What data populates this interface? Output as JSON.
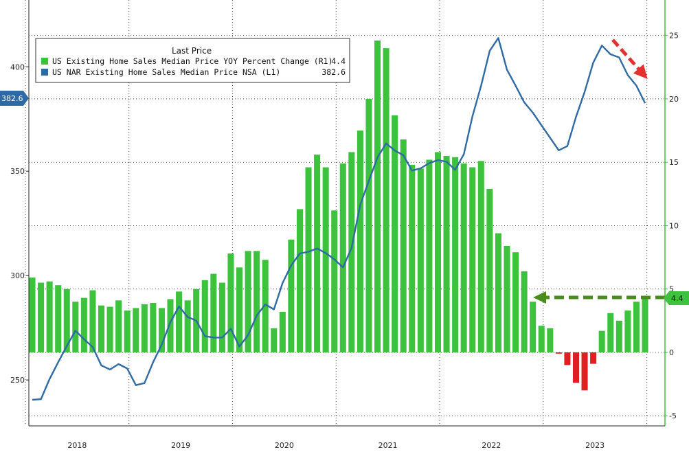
{
  "chart_data": {
    "type": "bar",
    "legend": {
      "title": "Last Price",
      "placement": "top-left",
      "entries": [
        {
          "label": "US Existing Home Sales Median Price YOY Percent Change  (R1)",
          "last": "4.4",
          "color": "#3cc23c"
        },
        {
          "label": "US NAR Existing Home Sales Median Price NSA  (L1)",
          "last": "382.6",
          "color": "#2e6aa5"
        }
      ]
    },
    "x_years": [
      "2018",
      "2019",
      "2020",
      "2021",
      "2022",
      "2023"
    ],
    "left_axis": {
      "ticks": [
        "250",
        "300",
        "350",
        "400"
      ],
      "ylim": [
        228,
        432
      ]
    },
    "right_axis": {
      "ticks": [
        "-5",
        "0",
        "5",
        "10",
        "15",
        "20",
        "25"
      ],
      "ylim": [
        -5.8,
        27.8
      ]
    },
    "series": [
      {
        "name": "US Existing Home Sales Median Price YOY Percent Change  (R1)",
        "axis": "right",
        "kind": "bar",
        "color_positive": "#3cc23c",
        "color_negative": "#e02020",
        "start": "2018-01",
        "values": [
          5.9,
          5.5,
          5.6,
          5.3,
          5.0,
          4.0,
          4.3,
          4.9,
          3.7,
          3.6,
          4.1,
          3.3,
          3.5,
          3.8,
          3.9,
          3.5,
          4.2,
          4.8,
          4.1,
          5.0,
          5.7,
          6.2,
          5.5,
          7.8,
          6.7,
          8.0,
          8.0,
          7.3,
          1.9,
          3.2,
          8.9,
          11.3,
          14.6,
          15.6,
          14.6,
          11.2,
          14.9,
          15.8,
          17.5,
          20.0,
          24.6,
          24.0,
          18.7,
          16.8,
          14.8,
          14.5,
          15.2,
          15.8,
          15.5,
          15.4,
          14.9,
          14.6,
          15.1,
          12.9,
          9.4,
          8.4,
          7.9,
          6.4,
          4.0,
          2.1,
          1.9,
          -0.1,
          -1.0,
          -2.4,
          -3.0,
          -0.9,
          1.7,
          3.1,
          2.5,
          3.3,
          4.0,
          4.4
        ]
      },
      {
        "name": "US NAR Existing Home Sales Median Price NSA  (L1)",
        "axis": "left",
        "kind": "line",
        "color": "#2e6aa5",
        "start": "2018-01",
        "values": [
          240.5,
          240.8,
          250.4,
          258.5,
          266.3,
          273.6,
          269.5,
          265.8,
          257.0,
          255.0,
          257.6,
          255.5,
          247.5,
          248.5,
          258.5,
          267.0,
          277.7,
          285.2,
          280.2,
          278.4,
          271.0,
          270.3,
          270.3,
          274.5,
          266.0,
          271.5,
          280.8,
          286.2,
          283.8,
          296.4,
          304.9,
          310.6,
          311.4,
          313.0,
          310.8,
          307.8,
          303.9,
          313.3,
          333.9,
          345.4,
          356.6,
          363.3,
          359.9,
          357.6,
          350.3,
          351.4,
          353.9,
          355.3,
          354.5,
          350.7,
          358.1,
          376.2,
          390.9,
          407.7,
          413.8,
          398.6,
          391.0,
          383.0,
          378.0,
          372.0,
          366.0,
          360.0,
          362.0,
          376.0,
          388.0,
          402.0,
          410.2,
          406.0,
          404.5,
          396.0,
          391.0,
          382.6
        ]
      }
    ],
    "last_value_tags": {
      "left": "382.6",
      "right": "4.4"
    },
    "annotations": [
      {
        "type": "arrow",
        "style": "dashed",
        "color": "#e53030",
        "direction": "down-right",
        "near": "line end (2023)"
      },
      {
        "type": "arrow",
        "style": "dashed",
        "color": "#4a8c1c",
        "direction": "left",
        "level_right_axis": 4.4,
        "from": "2023-12",
        "to": "2022-06"
      }
    ],
    "grid": true
  }
}
